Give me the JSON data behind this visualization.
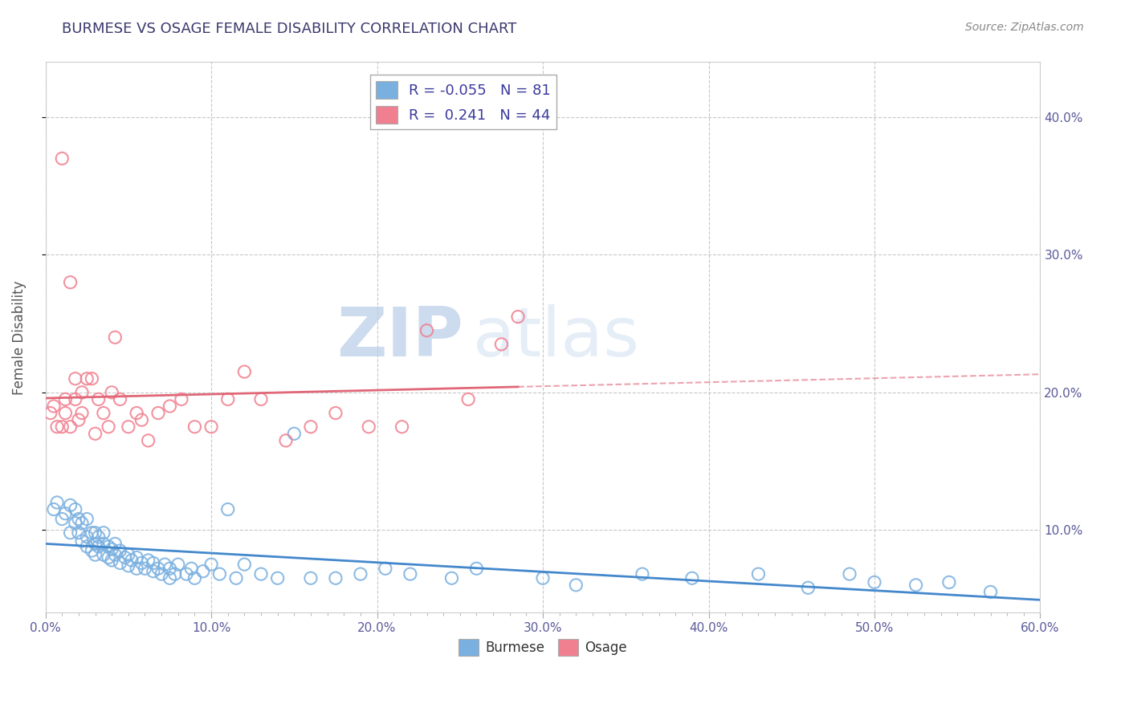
{
  "title": "BURMESE VS OSAGE FEMALE DISABILITY CORRELATION CHART",
  "title_color": "#3a3a6e",
  "ylabel": "Female Disability",
  "source_text": "Source: ZipAtlas.com",
  "xlim": [
    0.0,
    0.6
  ],
  "ylim": [
    0.04,
    0.44
  ],
  "xtick_labels": [
    "0.0%",
    "",
    "",
    "",
    "",
    "",
    "",
    "",
    "",
    "",
    "10.0%",
    "",
    "",
    "",
    "",
    "",
    "",
    "",
    "",
    "",
    "20.0%",
    "",
    "",
    "",
    "",
    "",
    "",
    "",
    "",
    "",
    "30.0%",
    "",
    "",
    "",
    "",
    "",
    "",
    "",
    "",
    "",
    "40.0%",
    "",
    "",
    "",
    "",
    "",
    "",
    "",
    "",
    "",
    "50.0%",
    "",
    "",
    "",
    "",
    "",
    "",
    "",
    "",
    "",
    "60.0%"
  ],
  "xtick_vals": [
    0.0,
    0.01,
    0.02,
    0.03,
    0.04,
    0.05,
    0.06,
    0.07,
    0.08,
    0.09,
    0.1,
    0.11,
    0.12,
    0.13,
    0.14,
    0.15,
    0.16,
    0.17,
    0.18,
    0.19,
    0.2,
    0.21,
    0.22,
    0.23,
    0.24,
    0.25,
    0.26,
    0.27,
    0.28,
    0.29,
    0.3,
    0.31,
    0.32,
    0.33,
    0.34,
    0.35,
    0.36,
    0.37,
    0.38,
    0.39,
    0.4,
    0.41,
    0.42,
    0.43,
    0.44,
    0.45,
    0.46,
    0.47,
    0.48,
    0.49,
    0.5,
    0.51,
    0.52,
    0.53,
    0.54,
    0.55,
    0.56,
    0.57,
    0.58,
    0.59,
    0.6
  ],
  "ytick_labels": [
    "10.0%",
    "20.0%",
    "30.0%",
    "40.0%"
  ],
  "ytick_vals": [
    0.1,
    0.2,
    0.3,
    0.4
  ],
  "grid_ytick_vals": [
    0.1,
    0.2,
    0.3,
    0.4
  ],
  "grid_xtick_vals": [
    0.0,
    0.1,
    0.2,
    0.3,
    0.4,
    0.5,
    0.6
  ],
  "legend_r_burmese": "-0.055",
  "legend_n_burmese": "81",
  "legend_r_osage": "0.241",
  "legend_n_osage": "44",
  "burmese_color": "#7ab0e0",
  "osage_color": "#f08090",
  "trend_burmese_color": "#4488cc",
  "trend_osage_color": "#e06878",
  "watermark_zip": "ZIP",
  "watermark_atlas": "atlas",
  "burmese_scatter_x": [
    0.005,
    0.007,
    0.01,
    0.012,
    0.015,
    0.015,
    0.018,
    0.018,
    0.02,
    0.02,
    0.022,
    0.022,
    0.025,
    0.025,
    0.025,
    0.028,
    0.028,
    0.03,
    0.03,
    0.03,
    0.032,
    0.032,
    0.035,
    0.035,
    0.035,
    0.038,
    0.038,
    0.04,
    0.04,
    0.042,
    0.042,
    0.045,
    0.045,
    0.048,
    0.05,
    0.05,
    0.052,
    0.055,
    0.055,
    0.058,
    0.06,
    0.062,
    0.065,
    0.065,
    0.068,
    0.07,
    0.072,
    0.075,
    0.075,
    0.078,
    0.08,
    0.085,
    0.088,
    0.09,
    0.095,
    0.1,
    0.105,
    0.11,
    0.115,
    0.12,
    0.13,
    0.14,
    0.15,
    0.16,
    0.175,
    0.19,
    0.205,
    0.22,
    0.245,
    0.26,
    0.3,
    0.32,
    0.36,
    0.39,
    0.43,
    0.46,
    0.485,
    0.5,
    0.525,
    0.545,
    0.57
  ],
  "burmese_scatter_y": [
    0.115,
    0.12,
    0.108,
    0.112,
    0.098,
    0.118,
    0.105,
    0.115,
    0.098,
    0.108,
    0.092,
    0.105,
    0.088,
    0.095,
    0.108,
    0.085,
    0.098,
    0.082,
    0.09,
    0.098,
    0.088,
    0.095,
    0.082,
    0.09,
    0.098,
    0.08,
    0.088,
    0.078,
    0.086,
    0.082,
    0.09,
    0.076,
    0.085,
    0.08,
    0.074,
    0.082,
    0.078,
    0.072,
    0.08,
    0.076,
    0.072,
    0.078,
    0.07,
    0.076,
    0.072,
    0.068,
    0.075,
    0.065,
    0.072,
    0.068,
    0.075,
    0.068,
    0.072,
    0.065,
    0.07,
    0.075,
    0.068,
    0.115,
    0.065,
    0.075,
    0.068,
    0.065,
    0.17,
    0.065,
    0.065,
    0.068,
    0.072,
    0.068,
    0.065,
    0.072,
    0.065,
    0.06,
    0.068,
    0.065,
    0.068,
    0.058,
    0.068,
    0.062,
    0.06,
    0.062,
    0.055
  ],
  "osage_scatter_x": [
    0.003,
    0.005,
    0.007,
    0.01,
    0.01,
    0.012,
    0.012,
    0.015,
    0.015,
    0.018,
    0.018,
    0.02,
    0.022,
    0.022,
    0.025,
    0.028,
    0.03,
    0.032,
    0.035,
    0.038,
    0.04,
    0.042,
    0.045,
    0.05,
    0.055,
    0.058,
    0.062,
    0.068,
    0.075,
    0.082,
    0.09,
    0.1,
    0.11,
    0.12,
    0.13,
    0.145,
    0.16,
    0.175,
    0.195,
    0.215,
    0.23,
    0.255,
    0.275,
    0.285
  ],
  "osage_scatter_y": [
    0.185,
    0.19,
    0.175,
    0.175,
    0.37,
    0.185,
    0.195,
    0.175,
    0.28,
    0.195,
    0.21,
    0.18,
    0.185,
    0.2,
    0.21,
    0.21,
    0.17,
    0.195,
    0.185,
    0.175,
    0.2,
    0.24,
    0.195,
    0.175,
    0.185,
    0.18,
    0.165,
    0.185,
    0.19,
    0.195,
    0.175,
    0.175,
    0.195,
    0.215,
    0.195,
    0.165,
    0.175,
    0.185,
    0.175,
    0.175,
    0.245,
    0.195,
    0.235,
    0.255
  ]
}
